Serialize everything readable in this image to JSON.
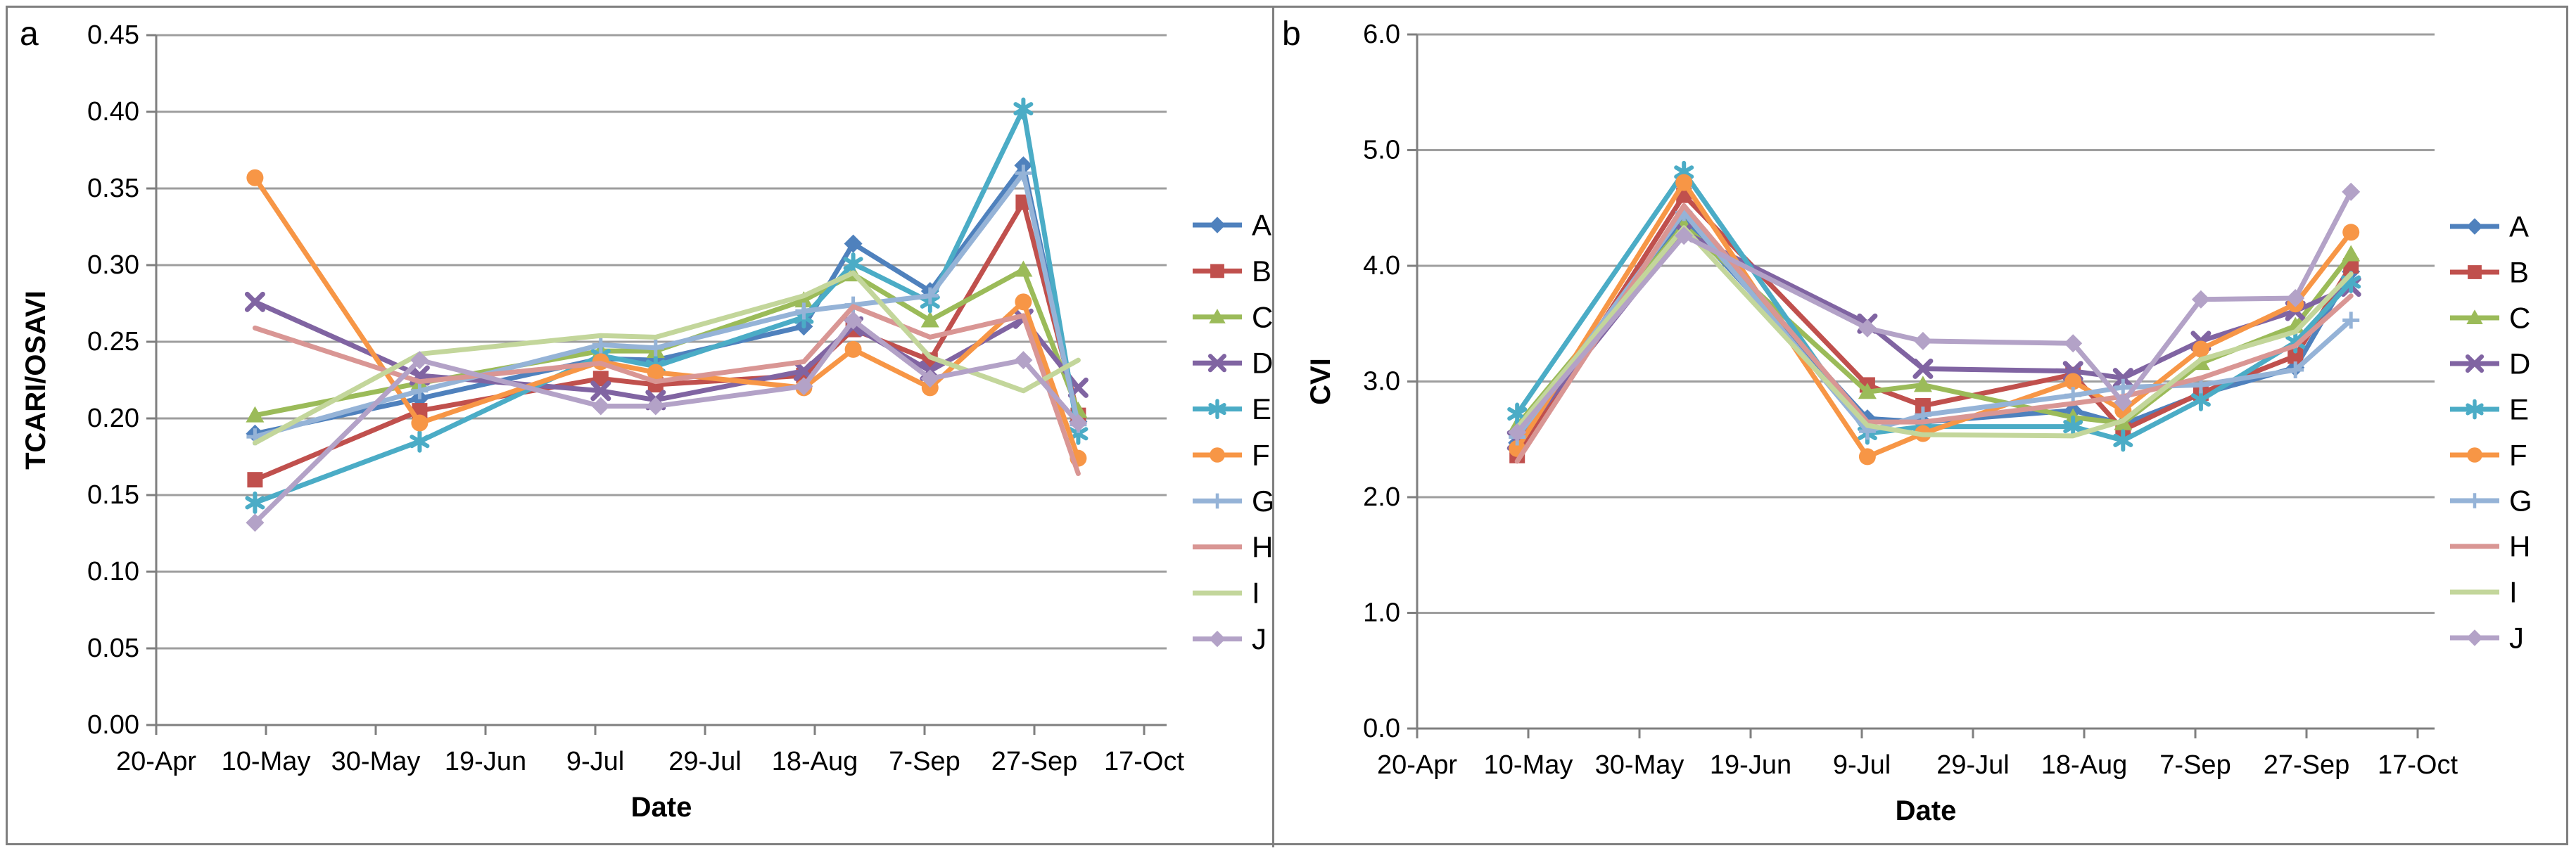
{
  "figure": {
    "description": "Two-panel line chart figure of vegetation indices over time for plots A-J",
    "panels": [
      {
        "label": "a",
        "ylabel": "TCARI/OSAVI",
        "xlabel": "Date",
        "ymax": 0.45,
        "ystep": 0.05,
        "ydecimals": 2,
        "x_tick_labels": [
          "20-Apr",
          "10-May",
          "30-May",
          "19-Jun",
          "9-Jul",
          "29-Jul",
          "18-Aug",
          "7-Sep",
          "27-Sep",
          "17-Oct"
        ],
        "x_days": [
          18,
          48,
          81,
          91,
          118,
          127,
          141,
          158,
          168
        ],
        "grid": true,
        "legend_position": "right",
        "chart_type": "line",
        "series": [
          {
            "name": "A",
            "color": "#4F81BD",
            "marker": "diamond",
            "values": [
              0.19,
              0.213,
              0.239,
              0.238,
              0.26,
              0.314,
              0.283,
              0.365,
              0.198
            ]
          },
          {
            "name": "B",
            "color": "#C0504D",
            "marker": "square",
            "values": [
              0.16,
              0.205,
              0.226,
              0.222,
              0.228,
              0.258,
              0.238,
              0.341,
              0.202
            ]
          },
          {
            "name": "C",
            "color": "#9BBB59",
            "marker": "triangle",
            "values": [
              0.202,
              0.223,
              0.244,
              0.244,
              0.277,
              0.294,
              0.264,
              0.297,
              0.205
            ]
          },
          {
            "name": "D",
            "color": "#8064A2",
            "marker": "x",
            "values": [
              0.276,
              0.228,
              0.218,
              0.212,
              0.231,
              0.26,
              0.231,
              0.265,
              0.22
            ]
          },
          {
            "name": "E",
            "color": "#4BACC6",
            "marker": "asterisk",
            "values": [
              0.145,
              0.185,
              0.241,
              0.234,
              0.266,
              0.301,
              0.276,
              0.402,
              0.19
            ]
          },
          {
            "name": "F",
            "color": "#F79646",
            "marker": "circle",
            "values": [
              0.357,
              0.197,
              0.237,
              0.23,
              0.22,
              0.245,
              0.22,
              0.276,
              0.174
            ]
          },
          {
            "name": "G",
            "color": "#95B3D7",
            "marker": "plus",
            "values": [
              0.188,
              0.218,
              0.248,
              0.246,
              0.27,
              0.274,
              0.28,
              0.36,
              0.196
            ]
          },
          {
            "name": "H",
            "color": "#D99694",
            "marker": "none",
            "values": [
              0.259,
              0.224,
              0.236,
              0.224,
              0.237,
              0.273,
              0.253,
              0.267,
              0.164
            ]
          },
          {
            "name": "I",
            "color": "#C3D69B",
            "marker": "none",
            "values": [
              0.184,
              0.242,
              0.254,
              0.253,
              0.28,
              0.295,
              0.24,
              0.218,
              0.238
            ]
          },
          {
            "name": "J",
            "color": "#B3A2C7",
            "marker": "diamond",
            "values": [
              0.132,
              0.238,
              0.208,
              0.208,
              0.221,
              0.264,
              0.226,
              0.238,
              0.197
            ]
          }
        ]
      },
      {
        "label": "b",
        "ylabel": "CVI",
        "xlabel": "Date",
        "ymax": 6.0,
        "ystep": 1.0,
        "ydecimals": 1,
        "x_tick_labels": [
          "20-Apr",
          "10-May",
          "30-May",
          "19-Jun",
          "9-Jul",
          "29-Jul",
          "18-Aug",
          "7-Sep",
          "27-Sep",
          "17-Oct"
        ],
        "x_days": [
          18,
          48,
          81,
          91,
          118,
          127,
          141,
          158,
          168
        ],
        "grid": true,
        "legend_position": "right",
        "chart_type": "line",
        "series": [
          {
            "name": "A",
            "color": "#4F81BD",
            "marker": "diamond",
            "values": [
              2.47,
              4.4,
              2.68,
              2.65,
              2.75,
              2.63,
              2.89,
              3.12,
              3.95
            ]
          },
          {
            "name": "B",
            "color": "#C0504D",
            "marker": "square",
            "values": [
              2.36,
              4.61,
              2.97,
              2.79,
              3.06,
              2.58,
              2.9,
              3.22,
              4.0
            ]
          },
          {
            "name": "C",
            "color": "#9BBB59",
            "marker": "triangle",
            "values": [
              2.62,
              4.35,
              2.91,
              2.97,
              2.69,
              2.64,
              3.16,
              3.48,
              4.1
            ]
          },
          {
            "name": "D",
            "color": "#8064A2",
            "marker": "x",
            "values": [
              2.49,
              4.29,
              3.5,
              3.11,
              3.09,
              3.03,
              3.35,
              3.61,
              3.82
            ]
          },
          {
            "name": "E",
            "color": "#4BACC6",
            "marker": "asterisk",
            "values": [
              2.72,
              4.81,
              2.55,
              2.61,
              2.61,
              2.49,
              2.84,
              3.34,
              3.86
            ]
          },
          {
            "name": "F",
            "color": "#F79646",
            "marker": "circle",
            "values": [
              2.42,
              4.72,
              2.35,
              2.55,
              3.0,
              2.75,
              3.28,
              3.67,
              4.29
            ]
          },
          {
            "name": "G",
            "color": "#95B3D7",
            "marker": "plus",
            "values": [
              2.52,
              4.46,
              2.57,
              2.71,
              2.88,
              2.95,
              2.97,
              3.1,
              3.53
            ]
          },
          {
            "name": "H",
            "color": "#D99694",
            "marker": "none",
            "values": [
              2.31,
              4.52,
              2.65,
              2.65,
              2.81,
              2.87,
              3.03,
              3.31,
              3.74
            ]
          },
          {
            "name": "I",
            "color": "#C3D69B",
            "marker": "none",
            "values": [
              2.6,
              4.33,
              2.62,
              2.54,
              2.53,
              2.66,
              3.19,
              3.43,
              3.93
            ]
          },
          {
            "name": "J",
            "color": "#B3A2C7",
            "marker": "diamond",
            "values": [
              2.56,
              4.26,
              3.46,
              3.35,
              3.33,
              2.82,
              3.71,
              3.72,
              4.64
            ]
          }
        ]
      }
    ]
  },
  "chart_data": [
    {
      "type": "line",
      "title": "",
      "panel": "a",
      "xlabel": "Date",
      "ylabel": "TCARI/OSAVI",
      "ylim": [
        0,
        0.45
      ],
      "x": [
        "8-May",
        "7-Jun",
        "10-Jul",
        "20-Jul",
        "16-Aug",
        "25-Aug",
        "8-Sep",
        "25-Sep",
        "5-Oct"
      ],
      "x_axis_ticks": [
        "20-Apr",
        "10-May",
        "30-May",
        "19-Jun",
        "9-Jul",
        "29-Jul",
        "18-Aug",
        "7-Sep",
        "27-Sep",
        "17-Oct"
      ],
      "legend_position": "right",
      "series": [
        {
          "name": "A",
          "values": [
            0.19,
            0.213,
            0.239,
            0.238,
            0.26,
            0.314,
            0.283,
            0.365,
            0.198
          ]
        },
        {
          "name": "B",
          "values": [
            0.16,
            0.205,
            0.226,
            0.222,
            0.228,
            0.258,
            0.238,
            0.341,
            0.202
          ]
        },
        {
          "name": "C",
          "values": [
            0.202,
            0.223,
            0.244,
            0.244,
            0.277,
            0.294,
            0.264,
            0.297,
            0.205
          ]
        },
        {
          "name": "D",
          "values": [
            0.276,
            0.228,
            0.218,
            0.212,
            0.231,
            0.26,
            0.231,
            0.265,
            0.22
          ]
        },
        {
          "name": "E",
          "values": [
            0.145,
            0.185,
            0.241,
            0.234,
            0.266,
            0.301,
            0.276,
            0.402,
            0.19
          ]
        },
        {
          "name": "F",
          "values": [
            0.357,
            0.197,
            0.237,
            0.23,
            0.22,
            0.245,
            0.22,
            0.276,
            0.174
          ]
        },
        {
          "name": "G",
          "values": [
            0.188,
            0.218,
            0.248,
            0.246,
            0.27,
            0.274,
            0.28,
            0.36,
            0.196
          ]
        },
        {
          "name": "H",
          "values": [
            0.259,
            0.224,
            0.236,
            0.224,
            0.237,
            0.273,
            0.253,
            0.267,
            0.164
          ]
        },
        {
          "name": "I",
          "values": [
            0.184,
            0.242,
            0.254,
            0.253,
            0.28,
            0.295,
            0.24,
            0.218,
            0.238
          ]
        },
        {
          "name": "J",
          "values": [
            0.132,
            0.238,
            0.208,
            0.208,
            0.221,
            0.264,
            0.226,
            0.238,
            0.197
          ]
        }
      ]
    },
    {
      "type": "line",
      "title": "",
      "panel": "b",
      "xlabel": "Date",
      "ylabel": "CVI",
      "ylim": [
        0,
        6.0
      ],
      "x": [
        "8-May",
        "7-Jun",
        "10-Jul",
        "20-Jul",
        "16-Aug",
        "25-Aug",
        "8-Sep",
        "25-Sep",
        "5-Oct"
      ],
      "x_axis_ticks": [
        "20-Apr",
        "10-May",
        "30-May",
        "19-Jun",
        "9-Jul",
        "29-Jul",
        "18-Aug",
        "7-Sep",
        "27-Sep",
        "17-Oct"
      ],
      "legend_position": "right",
      "series": [
        {
          "name": "A",
          "values": [
            2.47,
            4.4,
            2.68,
            2.65,
            2.75,
            2.63,
            2.89,
            3.12,
            3.95
          ]
        },
        {
          "name": "B",
          "values": [
            2.36,
            4.61,
            2.97,
            2.79,
            3.06,
            2.58,
            2.9,
            3.22,
            4.0
          ]
        },
        {
          "name": "C",
          "values": [
            2.62,
            4.35,
            2.91,
            2.97,
            2.69,
            2.64,
            3.16,
            3.48,
            4.1
          ]
        },
        {
          "name": "D",
          "values": [
            2.49,
            4.29,
            3.5,
            3.11,
            3.09,
            3.03,
            3.35,
            3.61,
            3.82
          ]
        },
        {
          "name": "E",
          "values": [
            2.72,
            4.81,
            2.55,
            2.61,
            2.61,
            2.49,
            2.84,
            3.34,
            3.86
          ]
        },
        {
          "name": "F",
          "values": [
            2.42,
            4.72,
            2.35,
            2.55,
            3.0,
            2.75,
            3.28,
            3.67,
            4.29
          ]
        },
        {
          "name": "G",
          "values": [
            2.52,
            4.46,
            2.57,
            2.71,
            2.88,
            2.95,
            2.97,
            3.1,
            3.53
          ]
        },
        {
          "name": "H",
          "values": [
            2.31,
            4.52,
            2.65,
            2.65,
            2.81,
            2.87,
            3.03,
            3.31,
            3.74
          ]
        },
        {
          "name": "I",
          "values": [
            2.6,
            4.33,
            2.62,
            2.54,
            2.53,
            2.66,
            3.19,
            3.43,
            3.93
          ]
        },
        {
          "name": "J",
          "values": [
            2.56,
            4.26,
            3.46,
            3.35,
            3.33,
            2.82,
            3.71,
            3.72,
            4.64
          ]
        }
      ]
    }
  ]
}
